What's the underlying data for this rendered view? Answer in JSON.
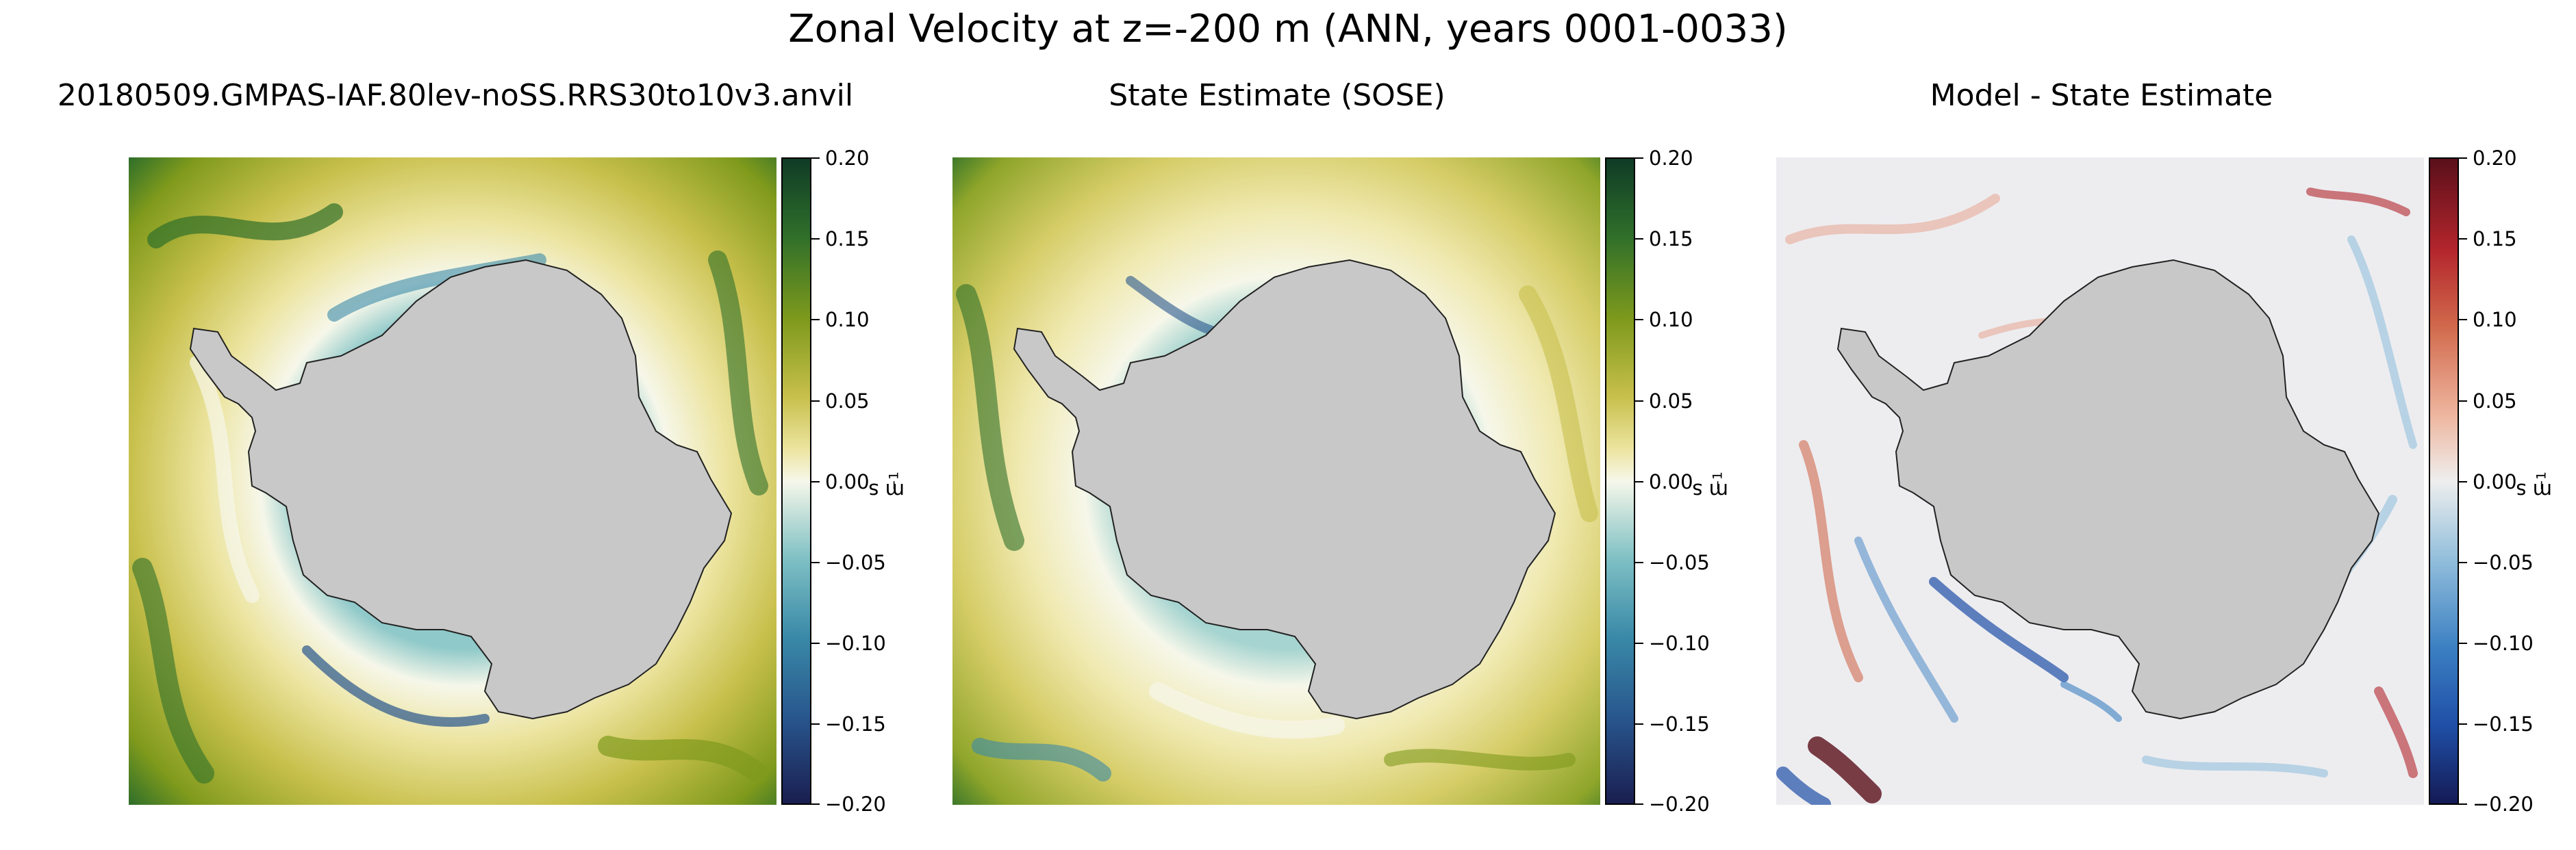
{
  "figure": {
    "title": "Zonal Velocity at z=-200 m (ANN, years 0001-0033)"
  },
  "chart_data": [
    {
      "type": "heatmap",
      "title": "20180509.GMPAS-IAF.80lev-noSS.RRS30to10v3.anvil",
      "projection": "south polar stereographic",
      "colormap": "ocean_green_blue (sequential diverging)",
      "colorbar": {
        "label": "m s",
        "label_exponent": "−1",
        "vmin": -0.2,
        "vmax": 0.2,
        "ticks": [
          "0.20",
          "0.15",
          "0.10",
          "0.05",
          "0.00",
          "−0.05",
          "−0.10",
          "−0.15",
          "−0.20"
        ],
        "colors": [
          "#1a1e50",
          "#28558c",
          "#3a8aa8",
          "#7fc0c4",
          "#f6f7ea",
          "#ece49f",
          "#c8c04c",
          "#7f9a1c",
          "#2f6f2a",
          "#0f3b26"
        ]
      },
      "land_color": "#c8c8c8",
      "description_values": {
        "mean_offshore_sign": "positive (eastward, green)",
        "coastal_current_sign": "negative (westward, blue)"
      }
    },
    {
      "type": "heatmap",
      "title": "State Estimate (SOSE)",
      "projection": "south polar stereographic",
      "colormap": "ocean_green_blue (sequential diverging)",
      "colorbar": {
        "label": "m s",
        "label_exponent": "−1",
        "vmin": -0.2,
        "vmax": 0.2,
        "ticks": [
          "0.20",
          "0.15",
          "0.10",
          "0.05",
          "0.00",
          "−0.05",
          "−0.10",
          "−0.15",
          "−0.20"
        ],
        "colors": [
          "#1a1e50",
          "#28558c",
          "#3a8aa8",
          "#7fc0c4",
          "#f6f7ea",
          "#ece49f",
          "#c8c04c",
          "#7f9a1c",
          "#2f6f2a",
          "#0f3b26"
        ]
      },
      "land_color": "#c8c8c8"
    },
    {
      "type": "heatmap",
      "title": "Model - State Estimate",
      "projection": "south polar stereographic",
      "colormap": "RdBu_r",
      "colorbar": {
        "label": "m s",
        "label_exponent": "−1",
        "vmin": -0.2,
        "vmax": 0.2,
        "ticks": [
          "0.20",
          "0.15",
          "0.10",
          "0.05",
          "0.00",
          "−0.05",
          "−0.10",
          "−0.15",
          "−0.20"
        ],
        "colors": [
          "#141a55",
          "#1f4fa6",
          "#3b7fc2",
          "#93bfdc",
          "#eeeeee",
          "#eeb7a0",
          "#d1694c",
          "#b3252c",
          "#5a0f1a"
        ]
      },
      "land_color": "#c8c8c8"
    }
  ]
}
